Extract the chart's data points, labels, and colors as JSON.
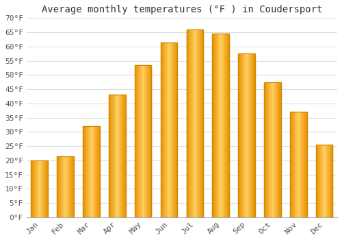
{
  "title": "Average monthly temperatures (°F ) in Coudersport",
  "months": [
    "Jan",
    "Feb",
    "Mar",
    "Apr",
    "May",
    "Jun",
    "Jul",
    "Aug",
    "Sep",
    "Oct",
    "Nov",
    "Dec"
  ],
  "values": [
    20,
    21.5,
    32,
    43,
    53.5,
    61.5,
    66,
    64.5,
    57.5,
    47.5,
    37,
    25.5
  ],
  "bar_color": "#FFA500",
  "bar_edge_color": "#CC8800",
  "bar_face_color": "#FFB733",
  "background_color": "#FFFFFF",
  "plot_bg_color": "#FFFFFF",
  "grid_color": "#DDDDDD",
  "title_fontsize": 10,
  "tick_label_fontsize": 8,
  "ylim": [
    0,
    70
  ],
  "ytick_step": 5
}
